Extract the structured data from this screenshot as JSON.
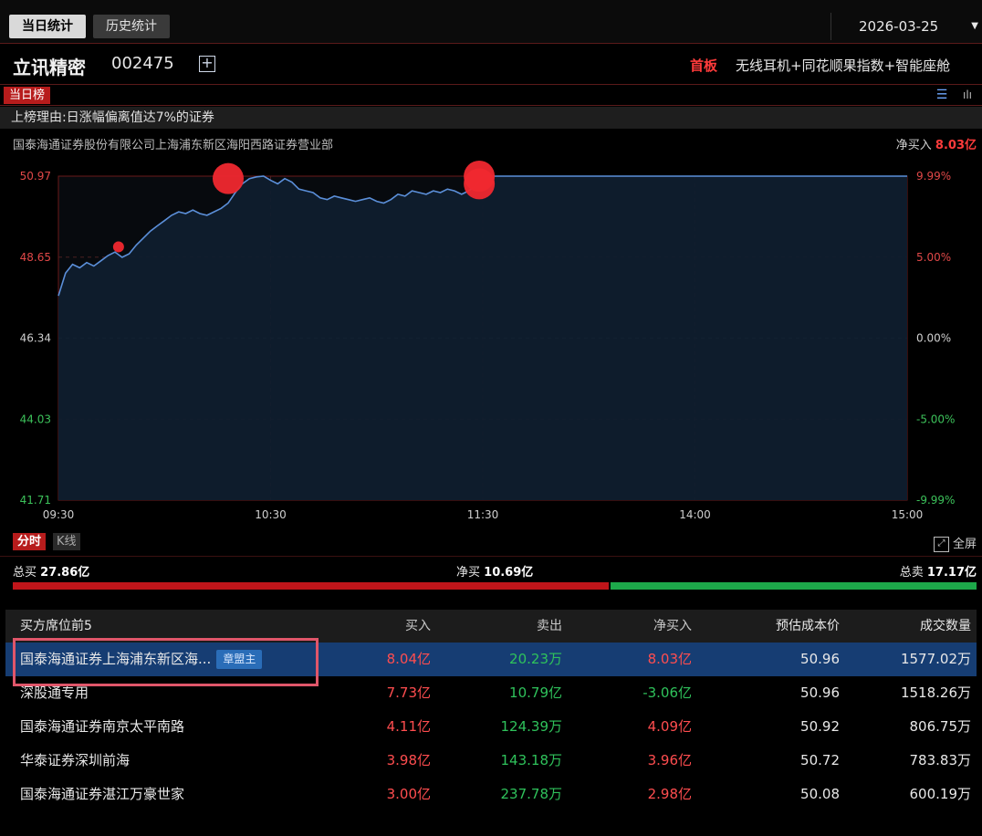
{
  "tabs": {
    "today": "当日统计",
    "history": "历史统计"
  },
  "date": "2026-03-25",
  "stock": {
    "name": "立讯精密",
    "code": "002475",
    "add_icon": "plus-square-icon"
  },
  "board": {
    "label": "首板",
    "concepts": "无线耳机+同花顺果指数+智能座舱"
  },
  "list": {
    "label": "当日榜",
    "reason": "上榜理由:日涨幅偏离值达7%的证券"
  },
  "broker": {
    "name": "国泰海通证券股份有限公司上海浦东新区海阳西路证券营业部",
    "net_buy_label": "净买入",
    "net_buy_value": "8.03亿"
  },
  "chart_data": {
    "type": "line",
    "x_ticks": [
      "09:30",
      "10:30",
      "11:30",
      "14:00",
      "15:00"
    ],
    "y_left_ticks": [
      "50.97",
      "48.65",
      "46.34",
      "44.03",
      "41.71"
    ],
    "y_right_ticks": [
      "9.99%",
      "5.00%",
      "0.00%",
      "-5.00%",
      "-9.99%"
    ],
    "ylim": [
      41.71,
      50.97
    ],
    "x_minutes": [
      0,
      240
    ],
    "line_color": "#5b8fd9",
    "series": [
      {
        "values": [
          [
            0,
            47.55
          ],
          [
            2,
            48.2
          ],
          [
            4,
            48.45
          ],
          [
            6,
            48.35
          ],
          [
            8,
            48.5
          ],
          [
            10,
            48.4
          ],
          [
            12,
            48.55
          ],
          [
            14,
            48.7
          ],
          [
            16,
            48.8
          ],
          [
            18,
            48.65
          ],
          [
            20,
            48.75
          ],
          [
            22,
            49.0
          ],
          [
            24,
            49.2
          ],
          [
            26,
            49.4
          ],
          [
            28,
            49.55
          ],
          [
            30,
            49.7
          ],
          [
            32,
            49.85
          ],
          [
            34,
            49.95
          ],
          [
            36,
            49.9
          ],
          [
            38,
            50.0
          ],
          [
            40,
            49.9
          ],
          [
            42,
            49.85
          ],
          [
            44,
            49.95
          ],
          [
            46,
            50.05
          ],
          [
            48,
            50.2
          ],
          [
            50,
            50.5
          ],
          [
            52,
            50.75
          ],
          [
            54,
            50.9
          ],
          [
            56,
            50.95
          ],
          [
            58,
            50.97
          ],
          [
            60,
            50.85
          ],
          [
            62,
            50.75
          ],
          [
            64,
            50.9
          ],
          [
            66,
            50.8
          ],
          [
            68,
            50.6
          ],
          [
            70,
            50.55
          ],
          [
            72,
            50.5
          ],
          [
            74,
            50.35
          ],
          [
            76,
            50.3
          ],
          [
            78,
            50.4
          ],
          [
            80,
            50.35
          ],
          [
            82,
            50.3
          ],
          [
            84,
            50.25
          ],
          [
            86,
            50.3
          ],
          [
            88,
            50.35
          ],
          [
            90,
            50.25
          ],
          [
            92,
            50.2
          ],
          [
            94,
            50.3
          ],
          [
            96,
            50.45
          ],
          [
            98,
            50.4
          ],
          [
            100,
            50.55
          ],
          [
            102,
            50.5
          ],
          [
            104,
            50.45
          ],
          [
            106,
            50.55
          ],
          [
            108,
            50.5
          ],
          [
            110,
            50.6
          ],
          [
            112,
            50.55
          ],
          [
            114,
            50.45
          ],
          [
            116,
            50.55
          ],
          [
            118,
            50.7
          ],
          [
            120,
            50.97
          ],
          [
            240,
            50.97
          ]
        ]
      }
    ],
    "markers": [
      {
        "x": 17,
        "y": 48.95,
        "size": "small"
      },
      {
        "x": 48,
        "y": 50.9,
        "size": "large"
      },
      {
        "x": 119,
        "y": 50.97,
        "size": "large"
      },
      {
        "x": 119,
        "y": 50.75,
        "size": "large"
      }
    ]
  },
  "modes": {
    "fenshi": "分时",
    "kline": "K线",
    "fullscreen": "全屏"
  },
  "summary": {
    "total_buy_label": "总买",
    "total_buy": "27.86亿",
    "net_buy_label": "净买",
    "net_buy": "10.69亿",
    "total_sell_label": "总卖",
    "total_sell": "17.17亿",
    "buy_ratio": 0.618
  },
  "table": {
    "headers": {
      "name": "买方席位前5",
      "buy": "买入",
      "sell": "卖出",
      "net": "净买入",
      "cost": "预估成本价",
      "volume": "成交数量"
    },
    "rows": [
      {
        "name": "国泰海通证券上海浦东新区海...",
        "tag": "章盟主",
        "buy": "8.04亿",
        "sell": "20.23万",
        "net": "8.03亿",
        "cost": "50.96",
        "volume": "1577.02万"
      },
      {
        "name": "深股通专用",
        "buy": "7.73亿",
        "sell": "10.79亿",
        "net": "-3.06亿",
        "cost": "50.96",
        "volume": "1518.26万"
      },
      {
        "name": "国泰海通证券南京太平南路",
        "buy": "4.11亿",
        "sell": "124.39万",
        "net": "4.09亿",
        "cost": "50.92",
        "volume": "806.75万"
      },
      {
        "name": "华泰证券深圳前海",
        "buy": "3.98亿",
        "sell": "143.18万",
        "net": "3.96亿",
        "cost": "50.72",
        "volume": "783.83万"
      },
      {
        "name": "国泰海通证券湛江万豪世家",
        "buy": "3.00亿",
        "sell": "237.78万",
        "net": "2.98亿",
        "cost": "50.08",
        "volume": "600.19万"
      }
    ]
  }
}
